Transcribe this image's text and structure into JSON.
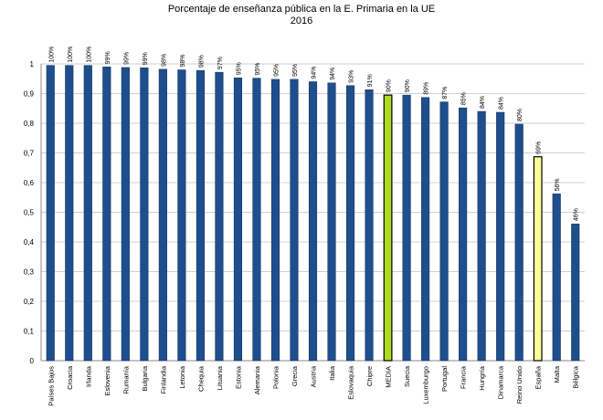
{
  "chart_data": {
    "type": "bar",
    "title": "Porcentaje de enseñanza pública en la E. Primaria en la UE",
    "subtitle": "2016",
    "xlabel": "",
    "ylabel": "",
    "ylim": [
      0,
      1
    ],
    "yticks": [
      "0",
      "0,1",
      "0,2",
      "0,3",
      "0,4",
      "0,5",
      "0,6",
      "0,7",
      "0,8",
      "0,9",
      "1"
    ],
    "grid": true,
    "categories": [
      "Países Bajos",
      "Croacia",
      "Irlanda",
      "Eslovenia",
      "Rumanía",
      "Bulgaria",
      "Finlandia",
      "Letonia",
      "Chequia",
      "Lituania",
      "Estonia",
      "Alemania",
      "Polonia",
      "Grecia",
      "Austria",
      "Italia",
      "Eslovaquia",
      "Chipre",
      "MEDIA",
      "Suecia",
      "Luxemburgo",
      "Portugal",
      "Francia",
      "Hungría",
      "Dinamarca",
      "Reino Unido",
      "España",
      "Malta",
      "Bélgica"
    ],
    "values": [
      0.995,
      0.995,
      0.995,
      0.99,
      0.988,
      0.987,
      0.982,
      0.98,
      0.978,
      0.972,
      0.953,
      0.952,
      0.948,
      0.948,
      0.94,
      0.936,
      0.927,
      0.913,
      0.895,
      0.895,
      0.887,
      0.872,
      0.852,
      0.84,
      0.837,
      0.797,
      0.687,
      0.562,
      0.461
    ],
    "data_labels": [
      "100%",
      "100%",
      "100%",
      "99%",
      "99%",
      "99%",
      "98%",
      "98%",
      "98%",
      "97%",
      "95%",
      "95%",
      "95%",
      "95%",
      "94%",
      "94%",
      "93%",
      "91%",
      "90%",
      "90%",
      "89%",
      "87%",
      "85%",
      "84%",
      "84%",
      "80%",
      "69%",
      "56%",
      "46%"
    ],
    "highlights": {
      "MEDIA": "#aadd22",
      "España": "#ffff99"
    },
    "colors": {
      "bar": "#1f4e8c",
      "bar_stroke": "#0d2f5e",
      "highlight_stroke": "#000000",
      "grid": "#d0d0d0",
      "axis": "#888888"
    }
  }
}
